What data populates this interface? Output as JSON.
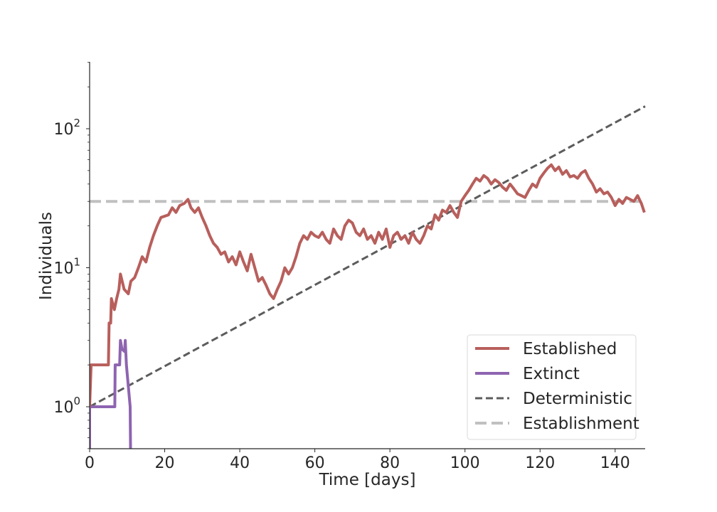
{
  "chart_data": {
    "type": "line",
    "title": "",
    "xlabel": "Time [days]",
    "ylabel": "Individuals",
    "xlim": [
      0,
      148
    ],
    "ylim": [
      0.5,
      300
    ],
    "yscale": "log",
    "grid": false,
    "legend_position": "lower-right",
    "x_ticks": [
      "0",
      "20",
      "40",
      "60",
      "80",
      "100",
      "120",
      "140"
    ],
    "y_ticks": [
      {
        "base": "10",
        "exp": "0"
      },
      {
        "base": "10",
        "exp": "1"
      },
      {
        "base": "10",
        "exp": "2"
      }
    ],
    "series": [
      {
        "name": "Established",
        "color": "#b85f5c",
        "style": "solid",
        "points": [
          [
            0,
            1
          ],
          [
            0.4,
            2
          ],
          [
            5,
            2
          ],
          [
            5.2,
            4
          ],
          [
            5.6,
            4
          ],
          [
            5.8,
            6
          ],
          [
            6.6,
            5
          ],
          [
            7.2,
            6
          ],
          [
            7.8,
            7
          ],
          [
            8.2,
            9
          ],
          [
            9.2,
            7
          ],
          [
            10.3,
            6.5
          ],
          [
            11,
            8
          ],
          [
            12,
            8.5
          ],
          [
            13,
            10
          ],
          [
            14,
            12
          ],
          [
            15,
            11
          ],
          [
            16,
            14
          ],
          [
            17,
            17
          ],
          [
            18,
            20
          ],
          [
            19,
            23
          ],
          [
            21,
            24
          ],
          [
            22,
            27
          ],
          [
            23,
            25
          ],
          [
            24,
            28
          ],
          [
            25.2,
            29
          ],
          [
            26.2,
            31
          ],
          [
            27,
            27
          ],
          [
            28,
            25
          ],
          [
            29,
            27
          ],
          [
            30,
            23
          ],
          [
            31,
            20
          ],
          [
            32,
            17
          ],
          [
            33,
            15
          ],
          [
            34,
            14
          ],
          [
            35,
            12.5
          ],
          [
            36,
            13
          ],
          [
            37,
            11
          ],
          [
            38,
            12
          ],
          [
            39,
            10.5
          ],
          [
            40,
            13
          ],
          [
            41,
            11
          ],
          [
            42,
            9.5
          ],
          [
            43,
            12.5
          ],
          [
            44,
            10
          ],
          [
            45,
            8
          ],
          [
            46,
            8.5
          ],
          [
            47,
            7.5
          ],
          [
            48,
            6.5
          ],
          [
            49,
            6
          ],
          [
            50,
            7
          ],
          [
            51,
            8
          ],
          [
            52,
            10
          ],
          [
            53,
            9
          ],
          [
            54,
            10
          ],
          [
            55,
            12
          ],
          [
            56,
            15
          ],
          [
            57,
            17
          ],
          [
            58,
            16
          ],
          [
            59,
            18
          ],
          [
            60,
            17
          ],
          [
            61,
            16.5
          ],
          [
            62,
            18
          ],
          [
            63,
            16
          ],
          [
            64,
            15
          ],
          [
            65,
            19
          ],
          [
            66,
            17
          ],
          [
            67,
            16
          ],
          [
            68,
            20
          ],
          [
            69,
            22
          ],
          [
            70,
            21
          ],
          [
            71,
            18
          ],
          [
            72,
            17
          ],
          [
            73,
            19
          ],
          [
            74,
            16
          ],
          [
            75,
            17
          ],
          [
            76,
            15
          ],
          [
            77,
            18
          ],
          [
            78,
            16
          ],
          [
            79,
            19
          ],
          [
            80,
            14
          ],
          [
            81,
            17
          ],
          [
            82,
            18
          ],
          [
            83,
            16
          ],
          [
            84,
            17
          ],
          [
            85,
            15
          ],
          [
            86,
            18
          ],
          [
            87,
            16
          ],
          [
            88,
            15
          ],
          [
            89,
            17
          ],
          [
            90,
            20
          ],
          [
            91,
            19
          ],
          [
            92,
            24
          ],
          [
            93,
            22
          ],
          [
            94,
            26
          ],
          [
            95,
            25
          ],
          [
            96,
            28
          ],
          [
            97,
            25
          ],
          [
            98,
            23
          ],
          [
            99,
            30
          ],
          [
            100,
            33
          ],
          [
            101,
            36
          ],
          [
            102,
            40
          ],
          [
            103,
            44
          ],
          [
            104,
            42
          ],
          [
            105,
            46
          ],
          [
            106,
            44
          ],
          [
            107,
            40
          ],
          [
            108,
            43
          ],
          [
            109,
            41
          ],
          [
            110,
            38
          ],
          [
            111,
            36
          ],
          [
            112,
            40
          ],
          [
            113,
            37
          ],
          [
            114,
            34
          ],
          [
            115,
            33
          ],
          [
            116,
            32
          ],
          [
            117,
            36
          ],
          [
            118,
            40
          ],
          [
            119,
            38
          ],
          [
            120,
            44
          ],
          [
            121,
            48
          ],
          [
            122,
            52
          ],
          [
            123,
            55
          ],
          [
            124,
            50
          ],
          [
            125,
            53
          ],
          [
            126,
            47
          ],
          [
            127,
            50
          ],
          [
            128,
            45
          ],
          [
            129,
            46
          ],
          [
            130,
            44
          ],
          [
            131,
            48
          ],
          [
            132,
            50
          ],
          [
            133,
            44
          ],
          [
            134,
            40
          ],
          [
            135,
            35
          ],
          [
            136,
            37
          ],
          [
            137,
            34
          ],
          [
            138,
            35
          ],
          [
            139,
            32
          ],
          [
            140,
            28
          ],
          [
            141,
            31
          ],
          [
            142,
            29
          ],
          [
            143,
            32
          ],
          [
            144,
            31
          ],
          [
            145,
            30
          ],
          [
            146,
            33
          ],
          [
            147,
            29
          ],
          [
            147.8,
            25
          ]
        ]
      },
      {
        "name": "Extinct",
        "color": "#8e64b0",
        "style": "solid",
        "points": [
          [
            0,
            0.5
          ],
          [
            0,
            1
          ],
          [
            6.7,
            1
          ],
          [
            6.8,
            2
          ],
          [
            8,
            2
          ],
          [
            8.2,
            3
          ],
          [
            8.6,
            2.6
          ],
          [
            9.3,
            2.5
          ],
          [
            9.5,
            3
          ],
          [
            9.8,
            2
          ],
          [
            10.8,
            1
          ],
          [
            10.9,
            0.5
          ]
        ]
      },
      {
        "name": "Deterministic",
        "color": "#5c5c5c",
        "style": "dashed",
        "points": [
          [
            0,
            1
          ],
          [
            148,
            145
          ]
        ]
      },
      {
        "name": "Establishment",
        "color": "#c0c0c0",
        "style": "dashed",
        "points": [
          [
            0,
            30
          ],
          [
            148,
            30
          ]
        ]
      }
    ]
  }
}
